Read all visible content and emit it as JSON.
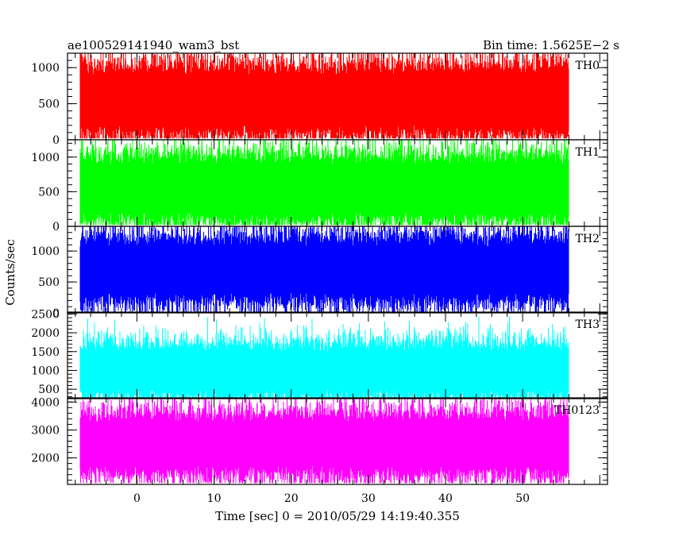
{
  "header": {
    "title": "ae100529141940_wam3_bst",
    "bin_time": "Bin time: 1.5625E−2 s"
  },
  "axes": {
    "ylabel": "Counts/sec",
    "xlabel": "Time [sec] 0 = 2010/05/29 14:19:40.355",
    "x_ticks": [
      "0",
      "10",
      "20",
      "30",
      "40",
      "50"
    ]
  },
  "chart_data": {
    "type": "line",
    "title": "ae100529141940_wam3_bst",
    "subtitle": "Bin time: 1.5625E−2 s",
    "xlabel": "Time [sec] 0 = 2010/05/29 14:19:40.355",
    "ylabel": "Counts/sec",
    "xlim": [
      -9,
      61
    ],
    "x_ticks": [
      0,
      10,
      20,
      30,
      40,
      50
    ],
    "bin_time": 0.015625,
    "x_range": [
      -7.4,
      56
    ],
    "grid": false,
    "panels": [
      {
        "name": "TH0",
        "color": "#ff0000",
        "ylim": [
          0,
          1200
        ],
        "y_ticks": [
          0,
          500,
          1000
        ],
        "y_tick_labels": [
          "0",
          "500",
          "1000"
        ],
        "mean": 550,
        "band": [
          80,
          1000
        ],
        "max": 1200,
        "min": 20
      },
      {
        "name": "TH1",
        "color": "#00ff00",
        "ylim": [
          0,
          1250
        ],
        "y_ticks": [
          0,
          500,
          1000
        ],
        "y_tick_labels": [
          "0",
          "500",
          "1000"
        ],
        "mean": 550,
        "band": [
          100,
          1000
        ],
        "max": 1250,
        "min": 20
      },
      {
        "name": "TH2",
        "color": "#0000ff",
        "ylim": [
          0,
          1400
        ],
        "y_ticks": [
          0,
          500,
          1000
        ],
        "y_tick_labels": [
          "0",
          "500",
          "1000"
        ],
        "mean": 700,
        "band": [
          200,
          1200
        ],
        "max": 1400,
        "min": 0
      },
      {
        "name": "TH3",
        "color": "#00ffff",
        "ylim": [
          250,
          2550
        ],
        "y_ticks": [
          500,
          1000,
          1500,
          2000,
          2500
        ],
        "y_tick_labels": [
          "500",
          "1000",
          "1500",
          "2000",
          "2500"
        ],
        "mean": 1000,
        "band": [
          450,
          1800
        ],
        "max": 2500,
        "min": 250
      },
      {
        "name": "TH0123",
        "color": "#ff00ff",
        "ylim": [
          1050,
          4150
        ],
        "y_ticks": [
          2000,
          3000,
          4000
        ],
        "y_tick_labels": [
          "2000",
          "3000",
          "4000"
        ],
        "mean": 2500,
        "band": [
          1500,
          3600
        ],
        "max": 4100,
        "min": 1100
      }
    ]
  }
}
